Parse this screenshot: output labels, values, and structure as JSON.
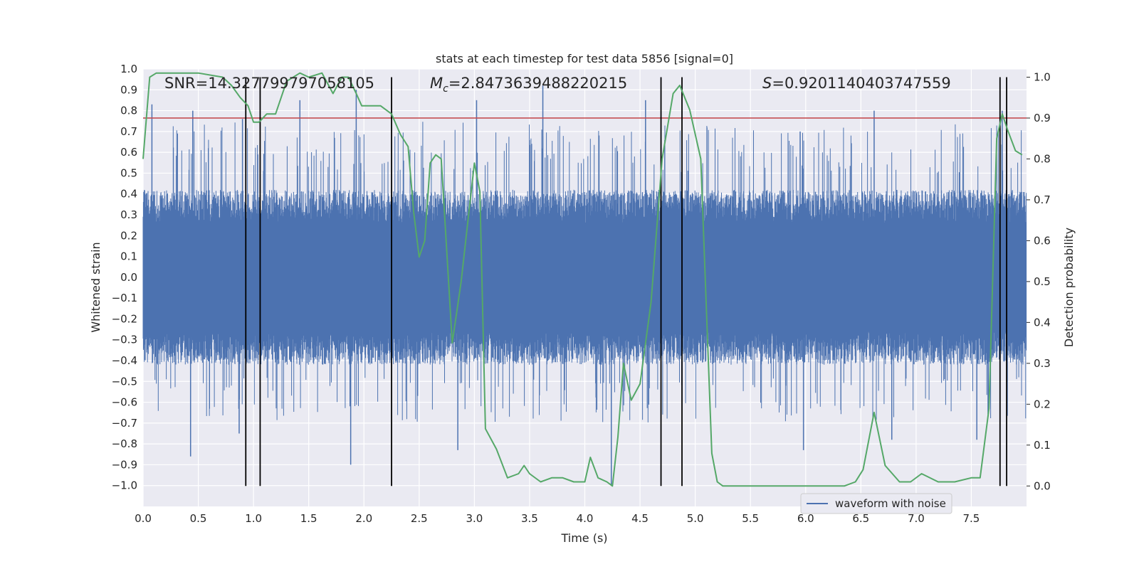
{
  "chart_data": {
    "type": "line",
    "title": "stats at each timestep for test data 5856 [signal=0]",
    "xlabel": "Time (s)",
    "ylabel": "Whitened strain",
    "y2label": "Detection probability",
    "xlim": [
      0,
      8
    ],
    "ylim": [
      -1.1,
      1.0
    ],
    "y2lim": [
      -0.05,
      1.02
    ],
    "x_ticks": [
      0.0,
      0.5,
      1.0,
      1.5,
      2.0,
      2.5,
      3.0,
      3.5,
      4.0,
      4.5,
      5.0,
      5.5,
      6.0,
      6.5,
      7.0,
      7.5
    ],
    "y_ticks": [
      -1.0,
      -0.9,
      -0.8,
      -0.7,
      -0.6,
      -0.5,
      -0.4,
      -0.3,
      -0.2,
      -0.1,
      0.0,
      0.1,
      0.2,
      0.3,
      0.4,
      0.5,
      0.6,
      0.7,
      0.8,
      0.9,
      1.0
    ],
    "y2_ticks": [
      0.0,
      0.1,
      0.2,
      0.3,
      0.4,
      0.5,
      0.6,
      0.7,
      0.8,
      0.9,
      1.0
    ],
    "annotations": {
      "snr": "SNR=14.327799797058105",
      "mc_symbol": "M",
      "mc_subscript": "c",
      "mc_value": "=2.8473639488220215",
      "s_symbol": "S",
      "s_value": "=0.9201140403747559"
    },
    "threshold": {
      "value": 0.9,
      "axis": "y2",
      "color": "#c44e52"
    },
    "vertical_lines": [
      0.93,
      1.06,
      2.25,
      4.69,
      4.88,
      7.76,
      7.82
    ],
    "vertical_line_range_y2": [
      0.0,
      1.0
    ],
    "series": [
      {
        "name": "waveform with noise",
        "color": "#4c72b0",
        "axis": "y",
        "kind": "noise",
        "x_range": [
          0,
          8
        ],
        "core_amplitude": [
          -0.42,
          0.42
        ],
        "spike_peaks": [
          {
            "x": 0.08,
            "y": 0.83
          },
          {
            "x": 0.45,
            "y": 0.8
          },
          {
            "x": 0.9,
            "y": 0.76
          },
          {
            "x": 1.42,
            "y": 0.85
          },
          {
            "x": 1.93,
            "y": 0.9
          },
          {
            "x": 3.02,
            "y": 0.85
          },
          {
            "x": 3.62,
            "y": 0.92
          },
          {
            "x": 4.55,
            "y": 0.85
          },
          {
            "x": 5.95,
            "y": 0.7
          },
          {
            "x": 6.62,
            "y": 0.8
          },
          {
            "x": 7.78,
            "y": 0.8
          },
          {
            "x": 0.43,
            "y": -0.86
          },
          {
            "x": 0.87,
            "y": -0.75
          },
          {
            "x": 1.88,
            "y": -0.9
          },
          {
            "x": 2.85,
            "y": -0.83
          },
          {
            "x": 4.24,
            "y": -1.0
          },
          {
            "x": 5.98,
            "y": -0.83
          },
          {
            "x": 6.78,
            "y": -0.78
          },
          {
            "x": 7.55,
            "y": -0.78
          }
        ]
      },
      {
        "name": "detection probability",
        "color": "#55a868",
        "axis": "y2",
        "x": [
          0.0,
          0.06,
          0.12,
          0.3,
          0.5,
          0.72,
          0.8,
          0.88,
          0.95,
          1.0,
          1.05,
          1.12,
          1.2,
          1.3,
          1.42,
          1.5,
          1.62,
          1.72,
          1.8,
          1.86,
          1.93,
          1.98,
          2.03,
          2.08,
          2.15,
          2.25,
          2.33,
          2.4,
          2.45,
          2.5,
          2.55,
          2.6,
          2.65,
          2.7,
          2.8,
          2.88,
          3.0,
          3.05,
          3.1,
          3.2,
          3.3,
          3.4,
          3.45,
          3.5,
          3.6,
          3.7,
          3.8,
          3.9,
          4.0,
          4.05,
          4.12,
          4.2,
          4.25,
          4.3,
          4.35,
          4.42,
          4.5,
          4.6,
          4.7,
          4.8,
          4.86,
          4.95,
          5.05,
          5.15,
          5.2,
          5.25,
          5.4,
          5.8,
          6.2,
          6.35,
          6.45,
          6.52,
          6.62,
          6.72,
          6.85,
          6.95,
          7.05,
          7.2,
          7.35,
          7.5,
          7.58,
          7.66,
          7.73,
          7.78,
          7.83,
          7.9,
          7.96
        ],
        "y": [
          0.8,
          1.0,
          1.01,
          1.01,
          1.01,
          1.0,
          0.98,
          0.95,
          0.93,
          0.89,
          0.89,
          0.91,
          0.91,
          0.99,
          1.01,
          1.0,
          1.01,
          0.96,
          1.0,
          1.0,
          0.96,
          0.93,
          0.93,
          0.93,
          0.93,
          0.91,
          0.86,
          0.83,
          0.67,
          0.56,
          0.6,
          0.79,
          0.81,
          0.8,
          0.35,
          0.5,
          0.79,
          0.72,
          0.14,
          0.09,
          0.02,
          0.03,
          0.05,
          0.03,
          0.01,
          0.02,
          0.02,
          0.01,
          0.01,
          0.07,
          0.02,
          0.01,
          0.0,
          0.12,
          0.3,
          0.21,
          0.25,
          0.45,
          0.8,
          0.96,
          0.98,
          0.92,
          0.8,
          0.08,
          0.01,
          0.0,
          0.0,
          0.0,
          0.0,
          0.0,
          0.01,
          0.04,
          0.18,
          0.05,
          0.01,
          0.01,
          0.03,
          0.01,
          0.01,
          0.02,
          0.02,
          0.19,
          0.85,
          0.91,
          0.87,
          0.82,
          0.81
        ]
      }
    ],
    "legend": {
      "label": "waveform with noise",
      "placement": "lower-right"
    }
  }
}
